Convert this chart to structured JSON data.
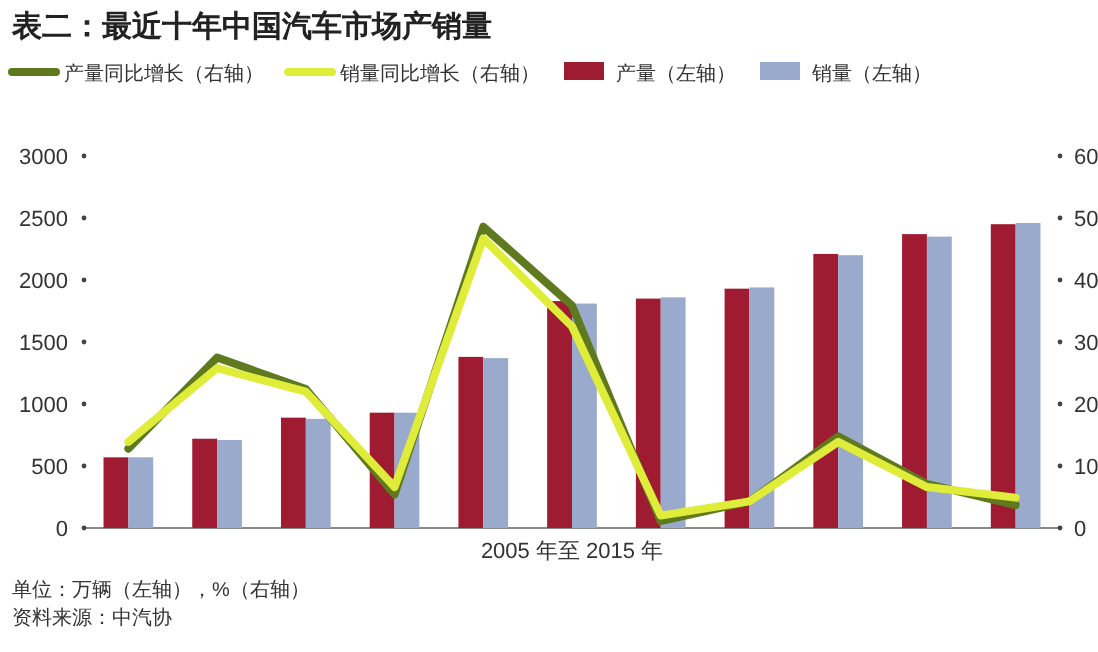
{
  "chart_data": {
    "type": "bar",
    "title": "表二：最近十年中国汽车市场产销量",
    "xlabel": "2005 年至 2015 年",
    "categories": [
      null,
      null,
      null,
      null,
      null,
      null,
      null,
      null,
      null,
      null,
      null
    ],
    "series": [
      {
        "name": "产量同比增长（右轴）",
        "type": "line",
        "axis": "y2",
        "color": "#5f7a1e",
        "values": [
          12.8,
          27.5,
          22.4,
          5.4,
          48.6,
          35.9,
          1.1,
          4.3,
          14.8,
          7.1,
          3.7
        ]
      },
      {
        "name": "销量同比增长（右轴）",
        "type": "line",
        "axis": "y2",
        "color": "#e0ec3a",
        "values": [
          13.9,
          25.8,
          22.0,
          6.6,
          46.7,
          32.5,
          2.0,
          4.3,
          13.9,
          6.6,
          4.9
        ]
      },
      {
        "name": "产量（左轴）",
        "color": "#9e1b32",
        "values": [
          570,
          720,
          890,
          930,
          1380,
          1830,
          1850,
          1930,
          2210,
          2370,
          2450
        ]
      },
      {
        "name": "销量（左轴）",
        "color": "#9aaacc",
        "values": [
          570,
          710,
          880,
          930,
          1370,
          1810,
          1860,
          1940,
          2200,
          2350,
          2460
        ]
      }
    ],
    "ylim": [
      0,
      3000
    ],
    "yticks": [
      0,
      500,
      1000,
      1500,
      2000,
      2500,
      3000
    ],
    "y2lim": [
      0,
      60
    ],
    "y2ticks": [
      0,
      10,
      20,
      30,
      40,
      50,
      60
    ],
    "legend": "top",
    "grid": false,
    "annotations": [
      "单位：万辆（左轴），%（右轴）",
      "资料来源：中汽协"
    ]
  }
}
